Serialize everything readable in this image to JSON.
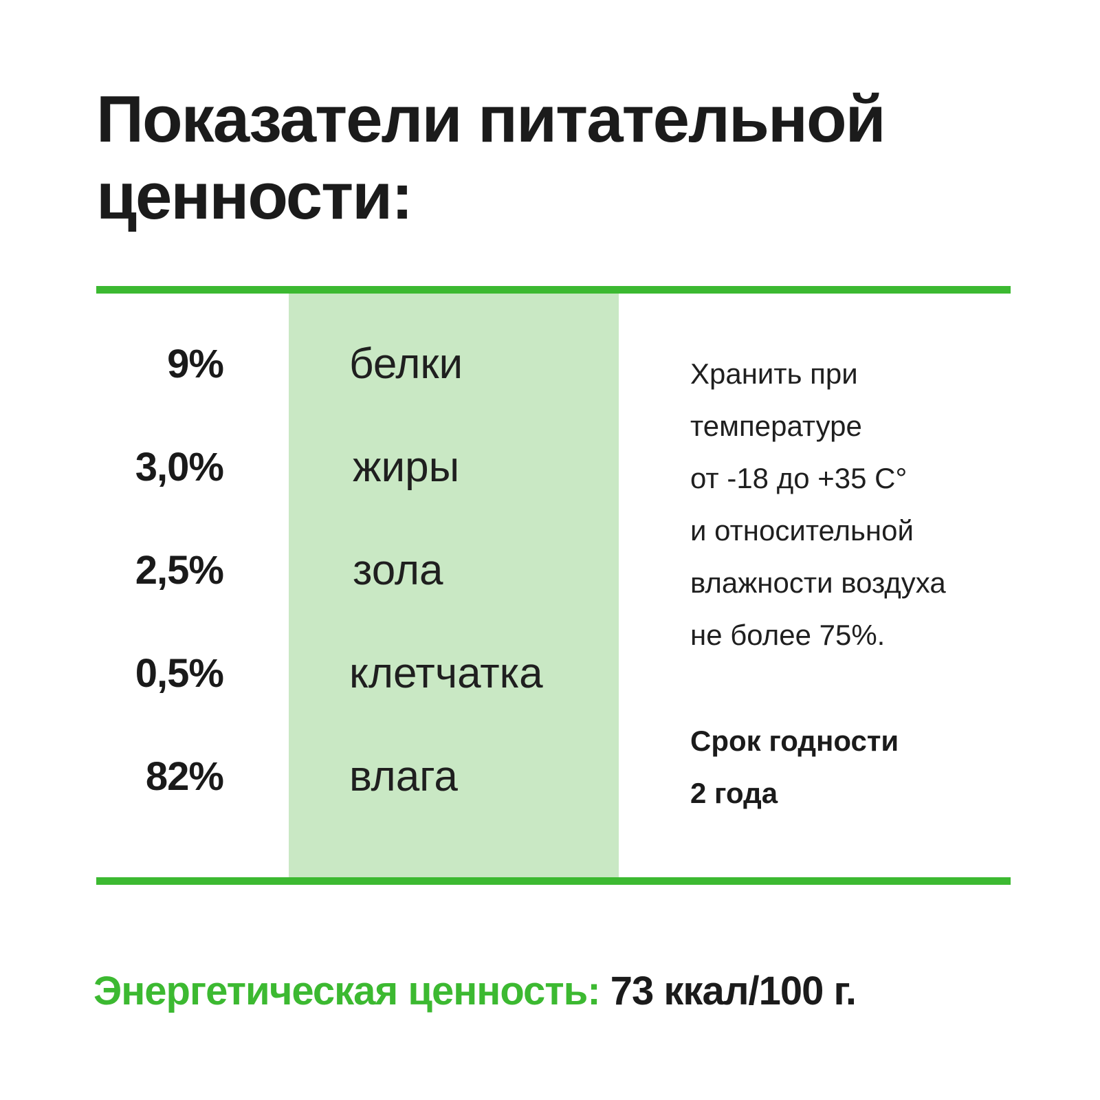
{
  "title": {
    "line1": "Показатели питательной",
    "line2": "ценности:"
  },
  "nutrients": [
    {
      "value": "9%",
      "label": "белки"
    },
    {
      "value": "3,0%",
      "label": "жиры"
    },
    {
      "value": "2,5%",
      "label": "зола"
    },
    {
      "value": "0,5%",
      "label": "клетчатка"
    },
    {
      "value": "82%",
      "label": "влага"
    }
  ],
  "storage": {
    "lines": [
      "Хранить при",
      "температуре",
      "от -18 до +35 С°",
      "и относительной",
      "влажности воздуха",
      "не более 75%."
    ]
  },
  "shelf_life": {
    "line1": "Срок годности",
    "line2": "2 года"
  },
  "energy": {
    "label": "Энергетическая ценность:",
    "value": "73 ккал/100 г."
  },
  "colors": {
    "accent_green": "#3cb931",
    "column_green": "#c9e8c4",
    "text": "#1b1b1b"
  }
}
